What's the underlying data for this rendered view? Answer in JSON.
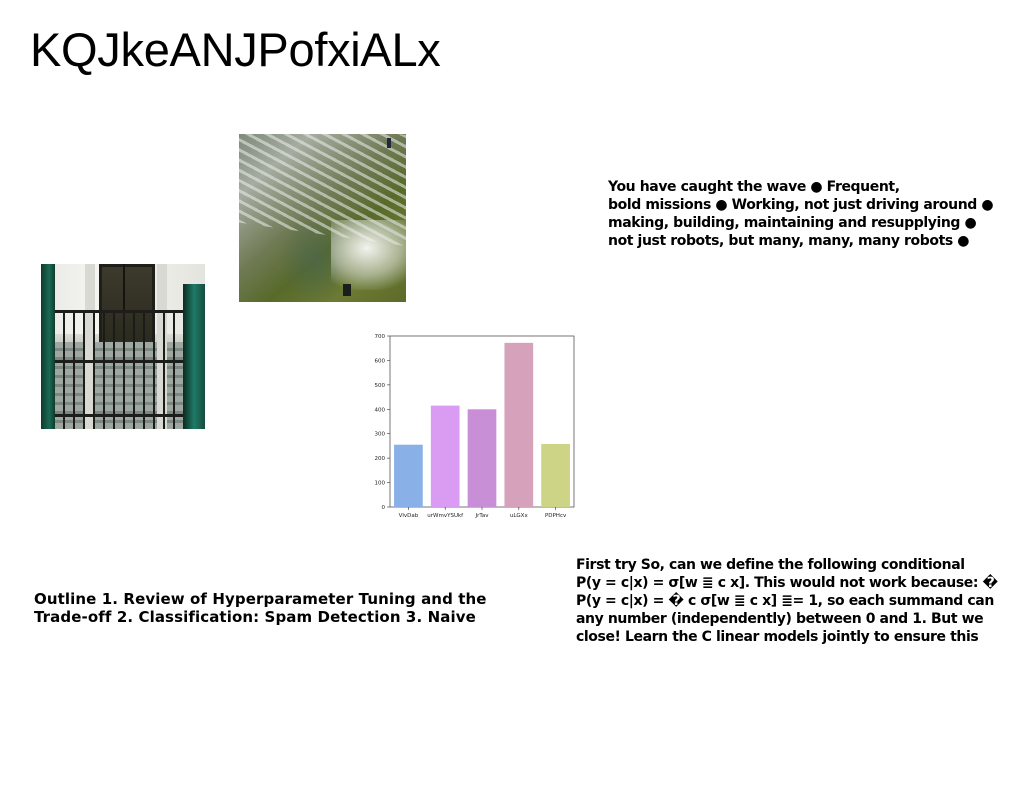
{
  "title": "KQJkeANJPofxiALx",
  "text_top_right": [
    "You have caught the wave ● Frequent,",
    "bold missions ● Working, not just driving around ●",
    "making, building, maintaining and resupplying ●",
    "not just robots, but many, many, many robots ●"
  ],
  "text_bottom_left": [
    "Outline 1. Review of Hyperparameter Tuning and the",
    "Trade-off 2. Classification: Spam Detection 3. Naive"
  ],
  "text_bottom_right": [
    "First try So, can we define the following conditional",
    "P(y = c|x) = σ[w ≣ c x]. This would not work because: �",
    "P(y = c|x) = � c σ[w ≣ c x] ≣= 1, so each summand can",
    "any number (independently) between 0 and 1. But we",
    "close! Learn the C linear models jointly to ensure this"
  ],
  "chart_data": {
    "type": "bar",
    "categories": [
      "VlvDab",
      "urWmvYSUkf",
      "JrTav",
      "uLGXx",
      "PDPHcv"
    ],
    "values": [
      255,
      415,
      400,
      672,
      258
    ],
    "colors": [
      "#8ab0e8",
      "#d99cf2",
      "#c88fd6",
      "#d6a2bb",
      "#cdd486"
    ],
    "ylim": [
      0,
      700
    ],
    "yticks": [
      0,
      100,
      200,
      300,
      400,
      500,
      600,
      700
    ],
    "title": "",
    "xlabel": "",
    "ylabel": "",
    "grid": false
  }
}
